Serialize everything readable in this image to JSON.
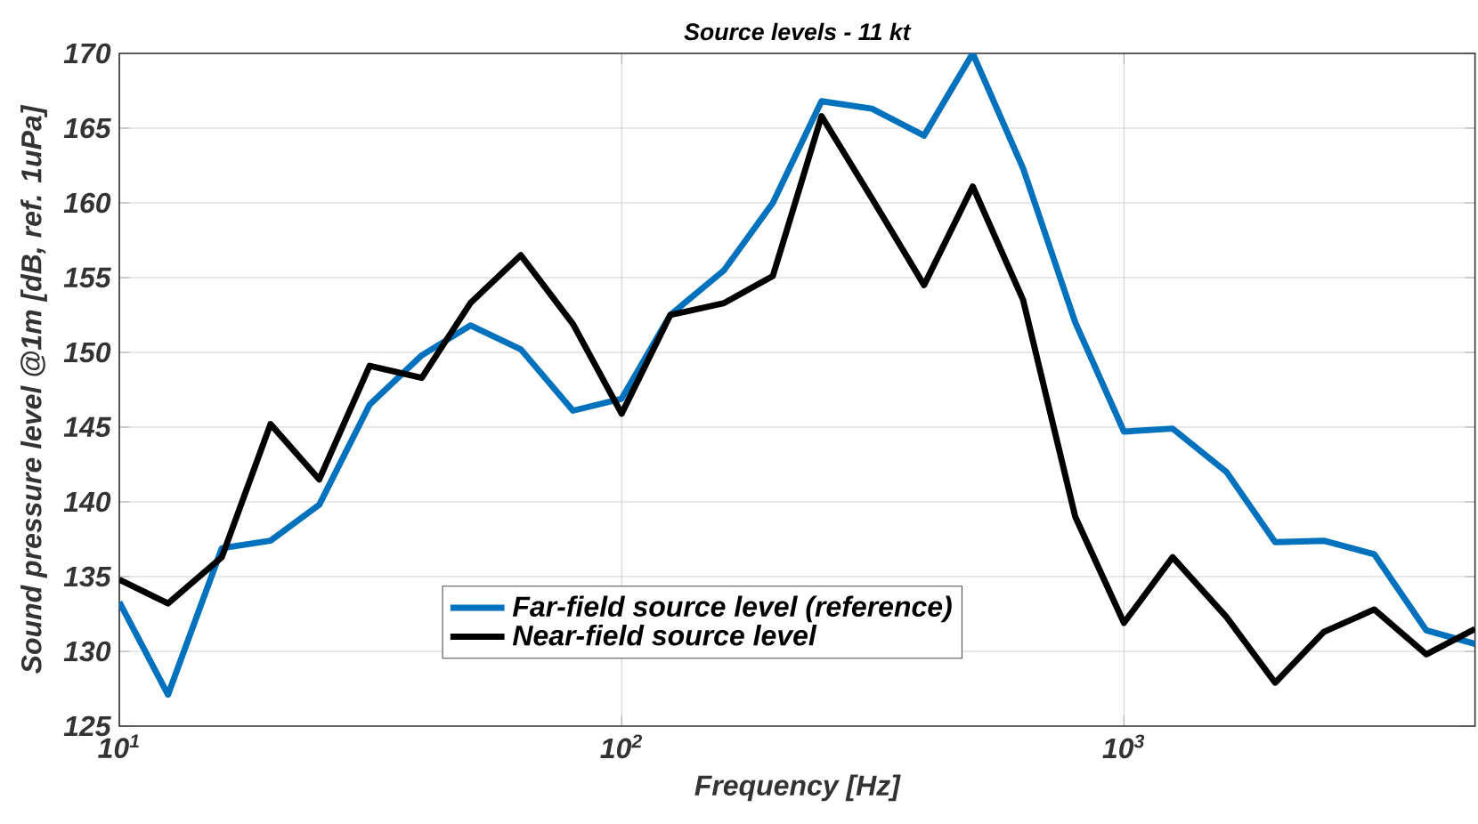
{
  "chart_data": {
    "type": "line",
    "title": "Source levels - 11 kt",
    "xlabel": "Frequency [Hz]",
    "ylabel": "Sound pressure level @1m [dB, ref. 1uPa]",
    "x": [
      10,
      12.5,
      16,
      20,
      25,
      31.5,
      40,
      50,
      63,
      80,
      100,
      125,
      160,
      200,
      250,
      315,
      400,
      500,
      630,
      800,
      1000,
      1250,
      1600,
      2000,
      2500,
      3150,
      4000,
      5000
    ],
    "series": [
      {
        "name": "Far-field source level (reference)",
        "color": "#0072bd",
        "values": [
          133.3,
          127.1,
          136.9,
          137.4,
          139.8,
          146.5,
          149.8,
          151.8,
          150.2,
          146.1,
          146.9,
          152.5,
          155.5,
          160.0,
          166.8,
          166.3,
          164.5,
          170.0,
          162.3,
          152.0,
          144.7,
          144.9,
          142.0,
          137.3,
          137.4,
          136.5,
          131.4,
          130.5
        ]
      },
      {
        "name": "Near-field source level",
        "color": "#000000",
        "values": [
          134.8,
          133.2,
          136.3,
          145.2,
          141.5,
          149.1,
          148.3,
          153.3,
          156.5,
          151.9,
          145.9,
          152.5,
          153.3,
          155.1,
          165.8,
          160.3,
          154.5,
          161.1,
          153.5,
          139.0,
          131.9,
          136.3,
          132.3,
          127.9,
          131.3,
          132.8,
          129.8,
          131.5
        ]
      }
    ],
    "log": "x",
    "xlim": [
      10,
      5000
    ],
    "ylim": [
      125,
      170
    ],
    "xticks": [
      {
        "value": 10,
        "label": "10$^{1}$"
      },
      {
        "value": 100,
        "label": "10$^{2}$"
      },
      {
        "value": 1000,
        "label": "10$^{3}$"
      }
    ],
    "yticks": [
      125,
      130,
      135,
      140,
      145,
      150,
      155,
      160,
      165,
      170
    ],
    "grid": true,
    "legend": "bottom",
    "marker": "none",
    "line_style": "solid"
  }
}
